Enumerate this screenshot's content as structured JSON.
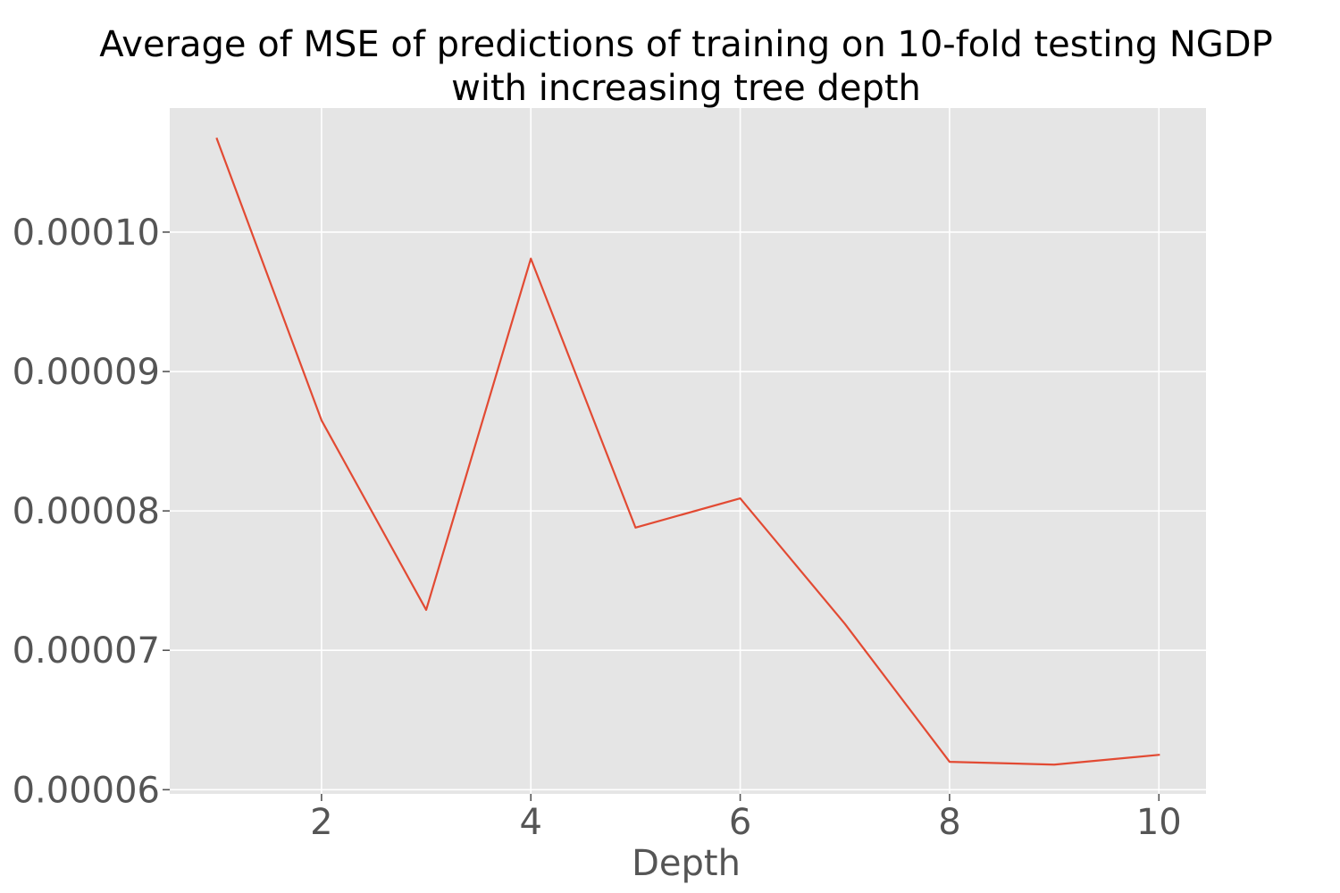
{
  "chart_data": {
    "type": "line",
    "title_lines": [
      "Average of MSE of predictions of training on 10-fold testing NGDP",
      "with increasing tree depth"
    ],
    "xlabel": "Depth",
    "ylabel": "",
    "x": [
      1,
      2,
      3,
      4,
      5,
      6,
      7,
      8,
      9,
      10
    ],
    "series": [
      {
        "values": [
          0.0001067,
          8.65e-05,
          7.29e-05,
          9.81e-05,
          7.88e-05,
          8.09e-05,
          7.19e-05,
          6.2e-05,
          6.18e-05,
          6.25e-05
        ],
        "color": "#E24A33"
      }
    ],
    "xticks": [
      2,
      4,
      6,
      8,
      10
    ],
    "xtick_labels": [
      "2",
      "4",
      "6",
      "8",
      "10"
    ],
    "yticks": [
      6e-05,
      7e-05,
      8e-05,
      9e-05,
      0.0001
    ],
    "ytick_labels": [
      "0.00006",
      "0.00007",
      "0.00008",
      "0.00009",
      "0.00010"
    ],
    "xlim": [
      0.55,
      10.45
    ],
    "ylim": [
      5.97e-05,
      0.0001089
    ],
    "grid": true,
    "background_color": "#E5E5E5",
    "grid_color": "#FFFFFF",
    "tick_color": "#555555"
  }
}
